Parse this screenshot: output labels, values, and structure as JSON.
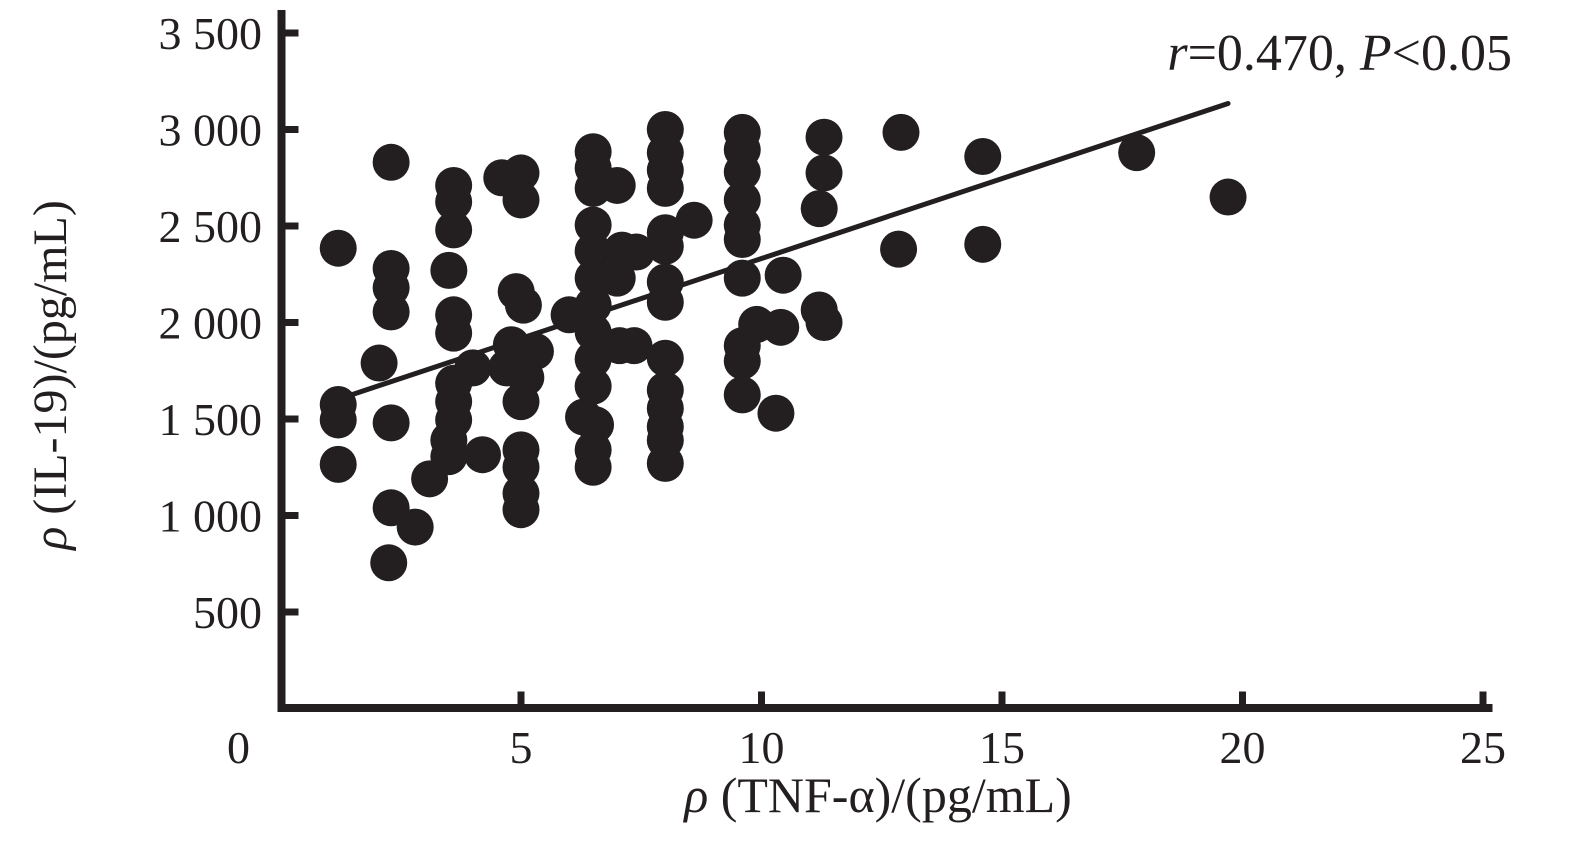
{
  "figure": {
    "background": "#ffffff",
    "ink_color": "#231f20",
    "annotation": {
      "parts": [
        {
          "text": "r",
          "italic": true
        },
        {
          "text": "=0.470, ",
          "italic": false
        },
        {
          "text": "P",
          "italic": true
        },
        {
          "text": "<0.05",
          "italic": false
        }
      ]
    },
    "x_title_parts": [
      {
        "text": "ρ",
        "italic": true
      },
      {
        "text": " (TNF-α)/(pg/mL)",
        "italic": false
      }
    ],
    "y_title_parts": [
      {
        "text": "ρ",
        "italic": true
      },
      {
        "text": " (IL-19)/(pg/mL)",
        "italic": false
      }
    ]
  },
  "chart_data": {
    "type": "scatter",
    "title": "",
    "xlabel": "ρ (TNF-α)/(pg/mL)",
    "ylabel": "ρ (IL-19)/(pg/mL)",
    "annotation": "r=0.470, P<0.05",
    "xlim": [
      0,
      25
    ],
    "ylim": [
      0,
      3500
    ],
    "grid": false,
    "legend_position": "none",
    "xticks": [
      {
        "value": 0,
        "label": "0"
      },
      {
        "value": 5,
        "label": "5"
      },
      {
        "value": 10,
        "label": "10"
      },
      {
        "value": 15,
        "label": "15"
      },
      {
        "value": 20,
        "label": "20"
      },
      {
        "value": 25,
        "label": "25"
      }
    ],
    "yticks": [
      {
        "value": 500,
        "label": "500"
      },
      {
        "value": 1000,
        "label": "1 000"
      },
      {
        "value": 1500,
        "label": "1 500"
      },
      {
        "value": 2000,
        "label": "2 000"
      },
      {
        "value": 2500,
        "label": "2 500"
      },
      {
        "value": 3000,
        "label": "3 000"
      },
      {
        "value": 3500,
        "label": "3 500"
      }
    ],
    "marker": {
      "shape": "circle",
      "color": "#231f20",
      "radius_px": 18.5
    },
    "trend_line": {
      "x1": 1.17,
      "y1": 1600,
      "x2": 19.7,
      "y2": 3135
    },
    "points": [
      [
        1.2,
        2385
      ],
      [
        1.2,
        1575
      ],
      [
        1.2,
        1495
      ],
      [
        1.2,
        1265
      ],
      [
        2.05,
        1790
      ],
      [
        2.3,
        2830
      ],
      [
        2.3,
        2280
      ],
      [
        2.3,
        2180
      ],
      [
        2.3,
        2055
      ],
      [
        2.3,
        1480
      ],
      [
        2.3,
        1040
      ],
      [
        2.25,
        755
      ],
      [
        2.8,
        940
      ],
      [
        3.1,
        1190
      ],
      [
        3.6,
        2710
      ],
      [
        3.6,
        2625
      ],
      [
        3.6,
        2480
      ],
      [
        3.5,
        2270
      ],
      [
        3.6,
        2040
      ],
      [
        3.6,
        1945
      ],
      [
        4.0,
        1765
      ],
      [
        3.6,
        1685
      ],
      [
        3.6,
        1590
      ],
      [
        3.6,
        1495
      ],
      [
        3.5,
        1390
      ],
      [
        3.5,
        1305
      ],
      [
        4.2,
        1315
      ],
      [
        4.6,
        2750
      ],
      [
        5.0,
        2775
      ],
      [
        5.0,
        2635
      ],
      [
        4.9,
        2160
      ],
      [
        5.05,
        2090
      ],
      [
        4.8,
        1885
      ],
      [
        5.3,
        1850
      ],
      [
        4.7,
        1765
      ],
      [
        5.1,
        1715
      ],
      [
        5.0,
        1590
      ],
      [
        5.0,
        1340
      ],
      [
        5.0,
        1250
      ],
      [
        5.0,
        1115
      ],
      [
        5.0,
        1030
      ],
      [
        6.0,
        2040
      ],
      [
        6.5,
        2885
      ],
      [
        6.5,
        2800
      ],
      [
        6.5,
        2695
      ],
      [
        6.5,
        2505
      ],
      [
        6.5,
        2370
      ],
      [
        6.5,
        2230
      ],
      [
        6.5,
        2090
      ],
      [
        6.5,
        1950
      ],
      [
        6.5,
        1810
      ],
      [
        6.5,
        1670
      ],
      [
        6.3,
        1510
      ],
      [
        6.55,
        1470
      ],
      [
        6.5,
        1340
      ],
      [
        6.5,
        1250
      ],
      [
        7.0,
        2710
      ],
      [
        7.1,
        2375
      ],
      [
        7.4,
        2365
      ],
      [
        7.0,
        2230
      ],
      [
        7.05,
        1880
      ],
      [
        7.35,
        1880
      ],
      [
        8.0,
        3000
      ],
      [
        8.0,
        2880
      ],
      [
        8.0,
        2790
      ],
      [
        8.0,
        2695
      ],
      [
        8.6,
        2530
      ],
      [
        8.0,
        2465
      ],
      [
        8.0,
        2395
      ],
      [
        8.0,
        2210
      ],
      [
        8.0,
        2105
      ],
      [
        8.0,
        1815
      ],
      [
        8.0,
        1650
      ],
      [
        8.0,
        1555
      ],
      [
        8.0,
        1460
      ],
      [
        8.0,
        1390
      ],
      [
        8.0,
        1270
      ],
      [
        9.6,
        2985
      ],
      [
        9.6,
        2895
      ],
      [
        9.6,
        2780
      ],
      [
        9.6,
        2635
      ],
      [
        9.6,
        2505
      ],
      [
        9.6,
        2430
      ],
      [
        9.6,
        2230
      ],
      [
        9.9,
        1990
      ],
      [
        9.6,
        1880
      ],
      [
        9.6,
        1800
      ],
      [
        9.6,
        1625
      ],
      [
        10.45,
        2245
      ],
      [
        10.4,
        1975
      ],
      [
        10.3,
        1530
      ],
      [
        11.3,
        2960
      ],
      [
        11.3,
        2775
      ],
      [
        11.2,
        2590
      ],
      [
        11.2,
        2065
      ],
      [
        11.3,
        2000
      ],
      [
        12.9,
        2985
      ],
      [
        12.85,
        2380
      ],
      [
        14.6,
        2860
      ],
      [
        14.6,
        2405
      ],
      [
        17.8,
        2880
      ],
      [
        19.7,
        2650
      ]
    ]
  }
}
